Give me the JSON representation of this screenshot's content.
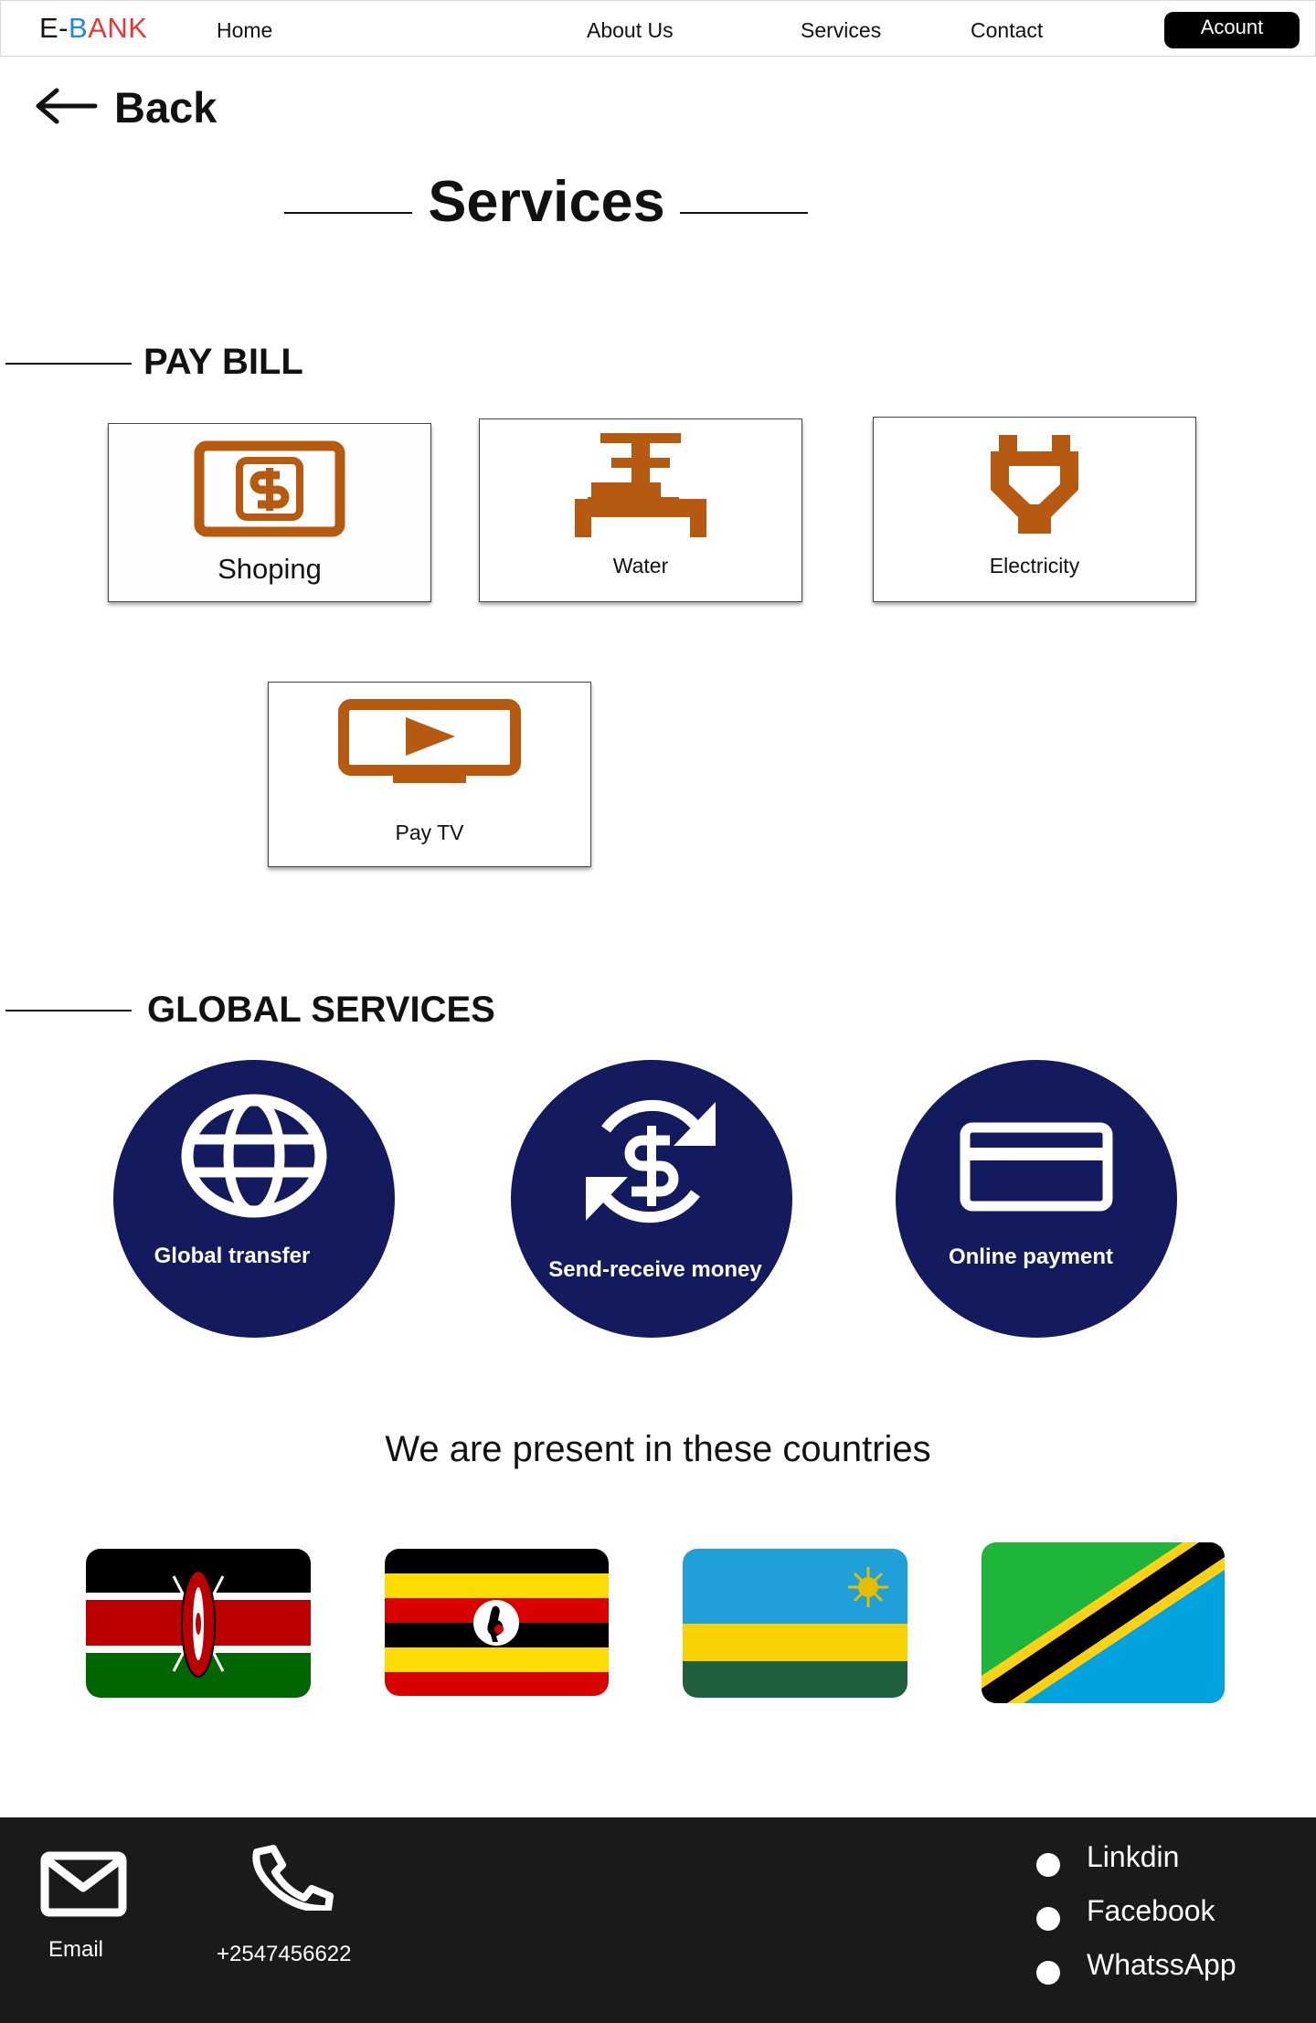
{
  "nav": {
    "brand_prefix": "E-",
    "brand_b": "B",
    "brand_rest": "ANK",
    "brand_colors": {
      "prefix": "#111111",
      "b": "#1e88e5",
      "rest": "#e53935"
    },
    "links": [
      "Home",
      "About Us",
      "Services",
      "Contact"
    ],
    "account_label": "Acount"
  },
  "back": {
    "label": "Back",
    "icon": "arrow-left-icon"
  },
  "page_title": "Services",
  "pay_bill": {
    "heading": "PAY BILL",
    "icon_color": "#b65a11",
    "items": [
      {
        "label": "Shoping",
        "icon": "money-bill-icon"
      },
      {
        "label": "Water",
        "icon": "water-pipe-icon"
      },
      {
        "label": "Electricity",
        "icon": "plug-icon"
      },
      {
        "label": "Pay TV",
        "icon": "tv-play-icon"
      }
    ]
  },
  "global_services": {
    "heading": "GLOBAL SERVICES",
    "circle_color": "#141a5e",
    "items": [
      {
        "label": "Global transfer",
        "icon": "globe-icon"
      },
      {
        "label": "Send-receive money",
        "icon": "currency-exchange-icon"
      },
      {
        "label": "Online payment",
        "icon": "credit-card-icon"
      }
    ]
  },
  "countries": {
    "heading": "We are present in these countries",
    "flags": [
      "kenya-flag",
      "uganda-flag",
      "rwanda-flag",
      "tanzania-flag"
    ]
  },
  "footer": {
    "email_label": "Email",
    "phone": "+2547456622",
    "socials": [
      "Linkdin",
      "Facebook",
      "WhatssApp"
    ]
  }
}
